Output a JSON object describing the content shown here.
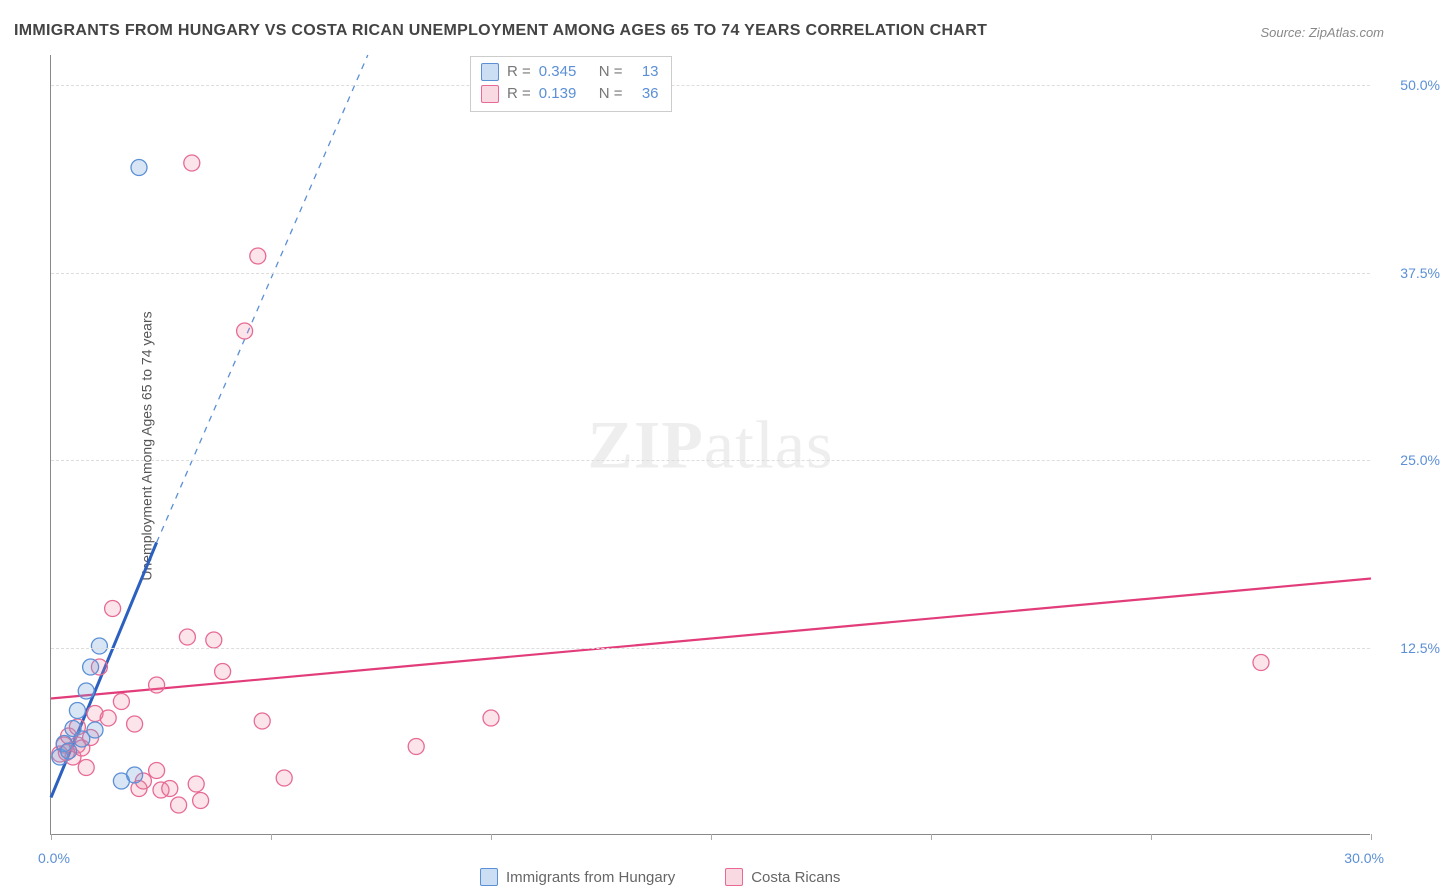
{
  "title": "IMMIGRANTS FROM HUNGARY VS COSTA RICAN UNEMPLOYMENT AMONG AGES 65 TO 74 YEARS CORRELATION CHART",
  "source": "Source: ZipAtlas.com",
  "ylabel": "Unemployment Among Ages 65 to 74 years",
  "watermark_a": "ZIP",
  "watermark_b": "atlas",
  "chart": {
    "type": "scatter",
    "xlim": [
      0,
      30
    ],
    "ylim": [
      0,
      52
    ],
    "xtick_start": "0.0%",
    "xtick_end": "30.0%",
    "xtick_marks": [
      0,
      5,
      10,
      15,
      20,
      25,
      30
    ],
    "yticks": [
      12.5,
      25.0,
      37.5,
      50.0
    ],
    "ytick_labels": [
      "12.5%",
      "25.0%",
      "37.5%",
      "50.0%"
    ],
    "background_color": "#ffffff",
    "grid_color": "#dddddd",
    "marker_radius": 8,
    "series": [
      {
        "name": "Immigrants from Hungary",
        "color_fill": "rgba(110,160,220,0.28)",
        "color_stroke": "#5b8fd6",
        "R": "0.345",
        "N": "13",
        "points": [
          [
            0.2,
            5.2
          ],
          [
            0.3,
            6.1
          ],
          [
            0.4,
            5.6
          ],
          [
            0.5,
            7.1
          ],
          [
            0.6,
            8.3
          ],
          [
            0.7,
            6.4
          ],
          [
            0.8,
            9.6
          ],
          [
            0.9,
            11.2
          ],
          [
            1.0,
            7.0
          ],
          [
            1.1,
            12.6
          ],
          [
            1.6,
            3.6
          ],
          [
            1.9,
            4.0
          ],
          [
            2.0,
            44.5
          ]
        ],
        "trend": {
          "solid": {
            "x1": 0.0,
            "y1": 2.5,
            "x2": 2.4,
            "y2": 19.5
          },
          "dash": {
            "x1": 2.4,
            "y1": 19.5,
            "x2": 7.2,
            "y2": 52.0
          },
          "color_solid": "#2b5fc0",
          "color_dash": "#5b8fd6"
        }
      },
      {
        "name": "Costa Ricans",
        "color_fill": "rgba(235,130,160,0.22)",
        "color_stroke": "#e76a94",
        "R": "0.139",
        "N": "36",
        "points": [
          [
            0.2,
            5.4
          ],
          [
            0.3,
            6.0
          ],
          [
            0.35,
            5.5
          ],
          [
            0.4,
            6.6
          ],
          [
            0.5,
            5.2
          ],
          [
            0.6,
            6.0
          ],
          [
            0.6,
            7.2
          ],
          [
            0.7,
            5.8
          ],
          [
            0.8,
            4.5
          ],
          [
            0.9,
            6.5
          ],
          [
            1.0,
            8.1
          ],
          [
            1.1,
            11.2
          ],
          [
            1.3,
            7.8
          ],
          [
            1.4,
            15.1
          ],
          [
            1.6,
            8.9
          ],
          [
            1.9,
            7.4
          ],
          [
            2.0,
            3.1
          ],
          [
            2.1,
            3.6
          ],
          [
            2.4,
            10.0
          ],
          [
            2.4,
            4.3
          ],
          [
            2.5,
            3.0
          ],
          [
            2.7,
            3.1
          ],
          [
            2.9,
            2.0
          ],
          [
            3.1,
            13.2
          ],
          [
            3.2,
            44.8
          ],
          [
            3.3,
            3.4
          ],
          [
            3.4,
            2.3
          ],
          [
            3.7,
            13.0
          ],
          [
            3.9,
            10.9
          ],
          [
            4.4,
            33.6
          ],
          [
            4.7,
            38.6
          ],
          [
            4.8,
            7.6
          ],
          [
            5.3,
            3.8
          ],
          [
            8.3,
            5.9
          ],
          [
            10.0,
            7.8
          ],
          [
            27.5,
            11.5
          ]
        ],
        "trend": {
          "line": {
            "x1": 0.0,
            "y1": 9.1,
            "x2": 30.0,
            "y2": 17.1
          },
          "color": "#e23d7a"
        }
      }
    ],
    "legend_stats": [
      {
        "swatch": "blue",
        "R_label": "R =",
        "R": "0.345",
        "N_label": "N =",
        "N": "13"
      },
      {
        "swatch": "pink",
        "R_label": "R =",
        "R": "0.139",
        "N_label": "N =",
        "N": "36"
      }
    ],
    "legend_bottom": [
      {
        "swatch": "blue",
        "label": "Immigrants from Hungary"
      },
      {
        "swatch": "pink",
        "label": "Costa Ricans"
      }
    ]
  }
}
